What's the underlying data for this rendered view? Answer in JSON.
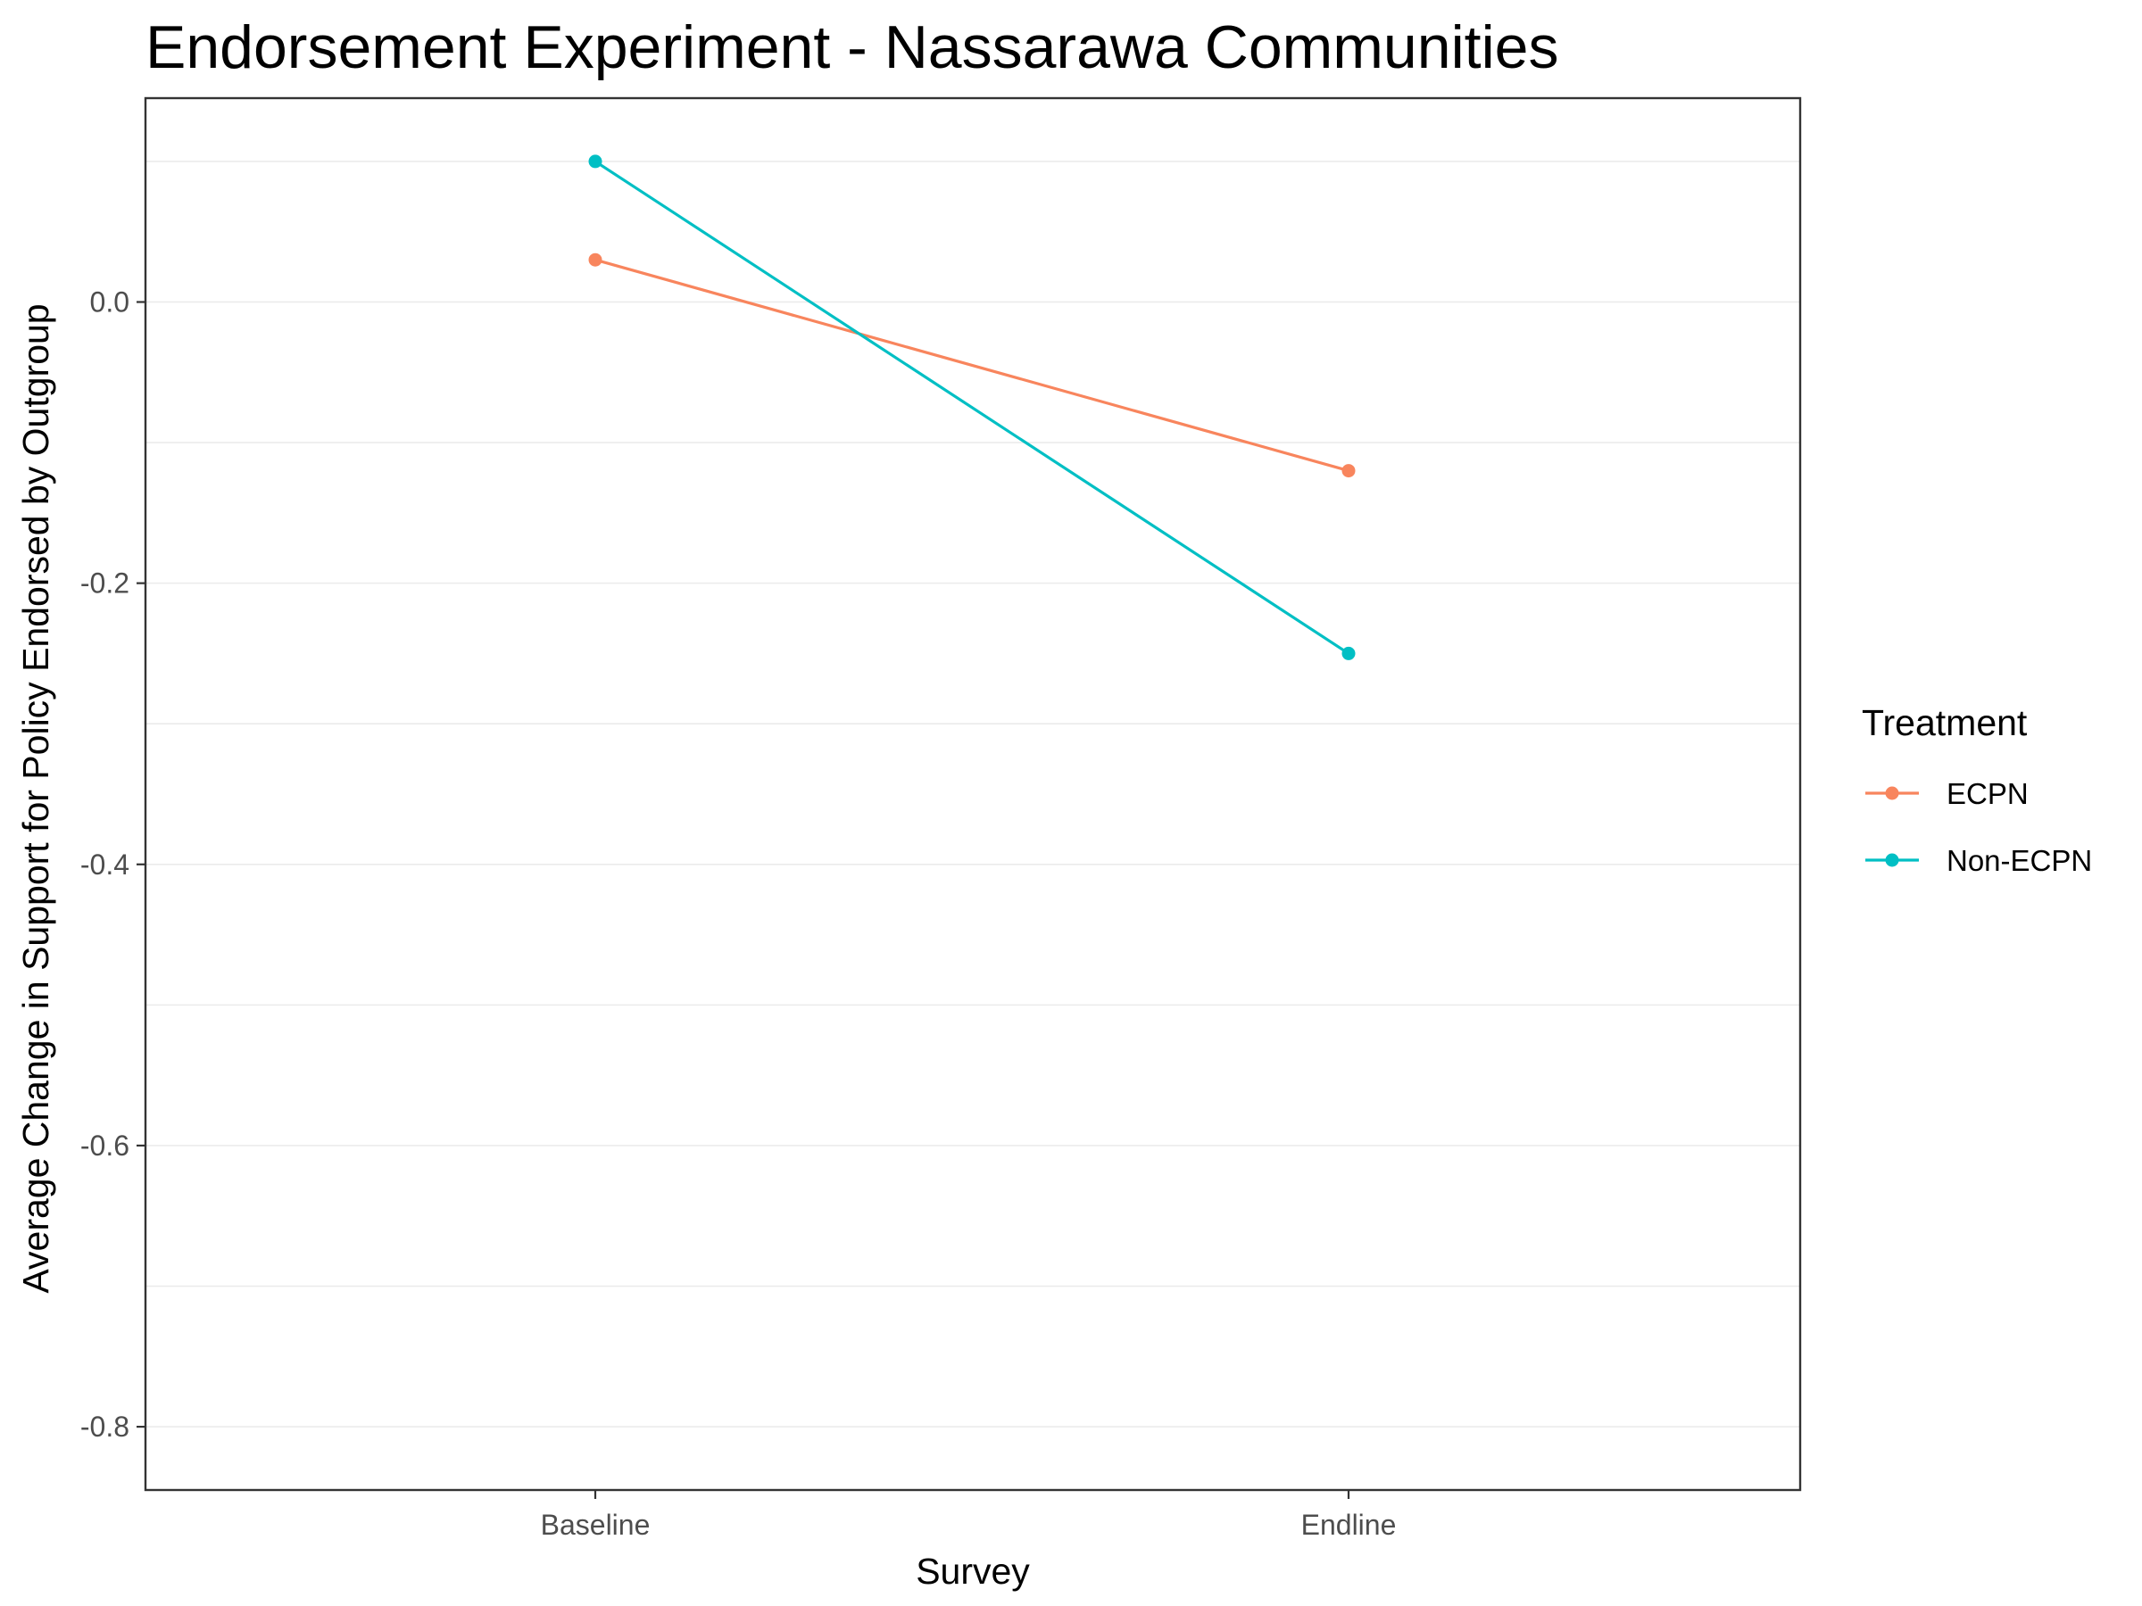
{
  "chart_data": {
    "type": "line",
    "title": "Endorsement Experiment - Nassarawa Communities",
    "xlabel": "Survey",
    "ylabel": "Average Change in Support for Policy Endorsed by Outgroup",
    "categories": [
      "Baseline",
      "Endline"
    ],
    "series": [
      {
        "name": "ECPN",
        "values": [
          0.03,
          -0.12
        ],
        "color": "#f8855d"
      },
      {
        "name": "Non-ECPN",
        "values": [
          0.1,
          -0.25
        ],
        "color": "#00bfc4"
      }
    ],
    "ylim": [
      -0.845,
      0.145
    ],
    "yticks": [
      0.0,
      -0.2,
      -0.4,
      -0.6,
      -0.8
    ],
    "ytick_labels": [
      "0.0",
      "-0.2",
      "-0.4",
      "-0.6",
      "-0.8"
    ],
    "grid": "horizontal major and minor lines",
    "legend": {
      "title": "Treatment",
      "position": "right"
    }
  }
}
